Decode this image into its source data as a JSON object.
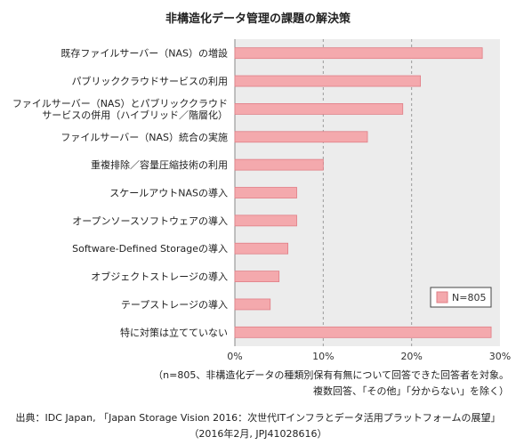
{
  "chart_data": {
    "type": "bar",
    "orientation": "horizontal",
    "title": "非構造化データ管理の課題の解決策",
    "categories": [
      [
        "既存ファイルサーバー（NAS）の増設"
      ],
      [
        "パブリッククラウドサービスの利用"
      ],
      [
        "ファイルサーバー（NAS）とパブリッククラウド",
        "サービスの併用（ハイブリッド／階層化）"
      ],
      [
        "ファイルサーバー（NAS）統合の実施"
      ],
      [
        "重複排除／容量圧縮技術の利用"
      ],
      [
        "スケールアウトNASの導入"
      ],
      [
        "オープンソースソフトウェアの導入"
      ],
      [
        "Software-Defined Storageの導入"
      ],
      [
        "オブジェクトストレージの導入"
      ],
      [
        "テープストレージの導入"
      ],
      [
        "特に対策は立てていない"
      ]
    ],
    "series": [
      {
        "name": "N=805",
        "values": [
          28,
          21,
          19,
          15,
          10,
          7,
          7,
          6,
          5,
          4,
          29
        ]
      }
    ],
    "xlim": [
      0,
      30
    ],
    "xticks": [
      "0%",
      "10%",
      "20%",
      "30%"
    ],
    "grid": "vertical-dashed",
    "legend": "bottom-right",
    "colors": {
      "bar": "#f4a9ad",
      "bar_stroke": "#e07e86",
      "plot_bg": "#ececec"
    }
  },
  "notes": {
    "line1": "（n=805、非構造化データの種類別保有有無について回答できた回答者を対象。",
    "line2": "複数回答、「その他」「分からない」を除く）"
  },
  "source": {
    "line1": "出典：IDC Japan, 「Japan Storage Vision 2016：次世代ITインフラとデータ活用プラットフォームの展望」",
    "line2": "（2016年2月, JPJ41028616）"
  }
}
